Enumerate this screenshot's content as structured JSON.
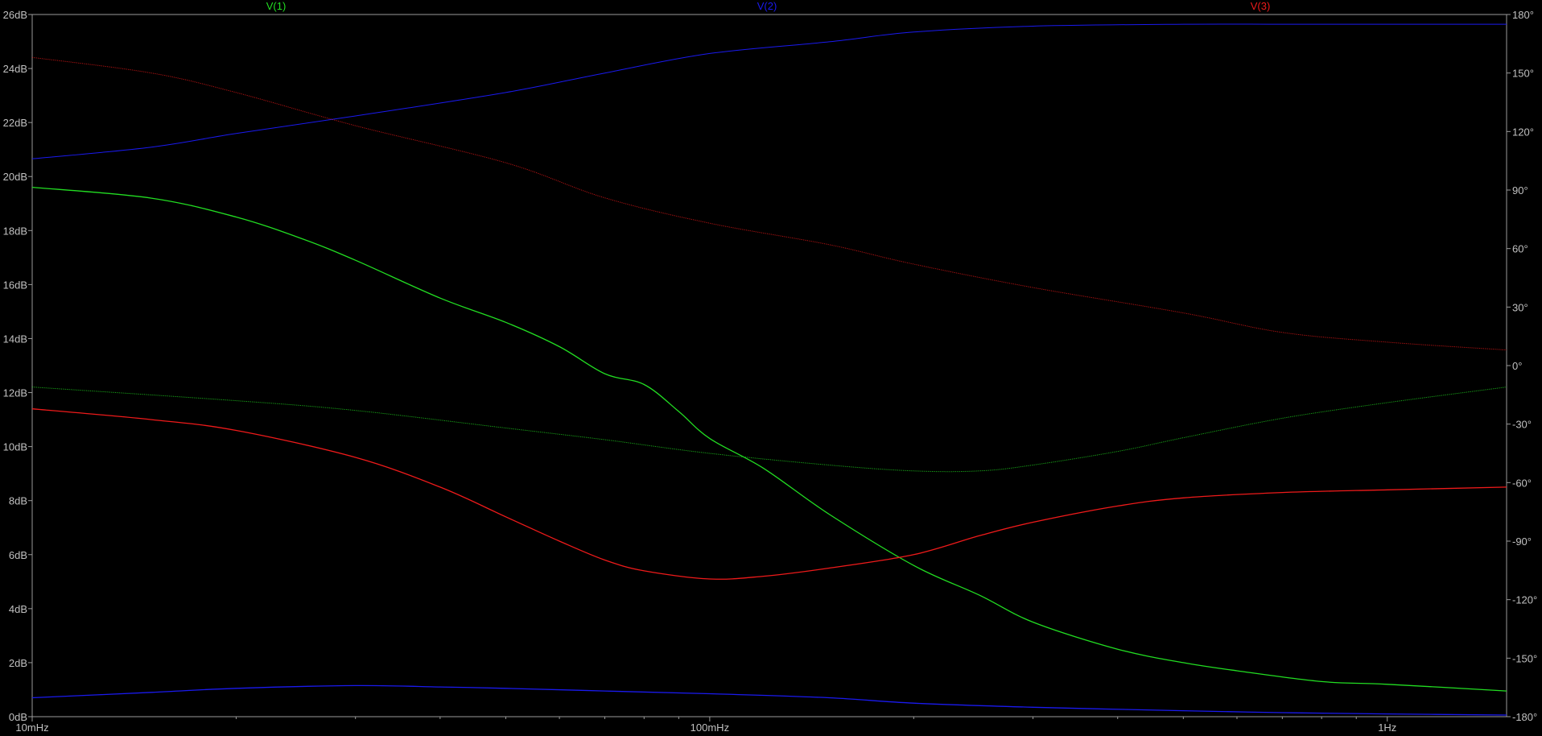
{
  "chart_data": {
    "type": "line",
    "x_scale": "log",
    "x_unit": "Hz",
    "x_range": [
      0.01,
      1.5
    ],
    "y_left_range": [
      0,
      26
    ],
    "y_right_range": [
      -180,
      180
    ],
    "y_left_ticks": [
      {
        "value": 0,
        "label": "0dB"
      },
      {
        "value": 2,
        "label": "2dB"
      },
      {
        "value": 4,
        "label": "4dB"
      },
      {
        "value": 6,
        "label": "6dB"
      },
      {
        "value": 8,
        "label": "8dB"
      },
      {
        "value": 10,
        "label": "10dB"
      },
      {
        "value": 12,
        "label": "12dB"
      },
      {
        "value": 14,
        "label": "14dB"
      },
      {
        "value": 16,
        "label": "16dB"
      },
      {
        "value": 18,
        "label": "18dB"
      },
      {
        "value": 20,
        "label": "20dB"
      },
      {
        "value": 22,
        "label": "22dB"
      },
      {
        "value": 24,
        "label": "24dB"
      },
      {
        "value": 26,
        "label": "26dB"
      }
    ],
    "y_right_ticks": [
      {
        "value": 180,
        "label": "180°"
      },
      {
        "value": 150,
        "label": "150°"
      },
      {
        "value": 120,
        "label": "120°"
      },
      {
        "value": 90,
        "label": "90°"
      },
      {
        "value": 60,
        "label": "60°"
      },
      {
        "value": 30,
        "label": "30°"
      },
      {
        "value": 0,
        "label": "0°"
      },
      {
        "value": -30,
        "label": "-30°"
      },
      {
        "value": -60,
        "label": "-60°"
      },
      {
        "value": -90,
        "label": "-90°"
      },
      {
        "value": -120,
        "label": "-120°"
      },
      {
        "value": -150,
        "label": "-150°"
      },
      {
        "value": -180,
        "label": "-180°"
      }
    ],
    "x_ticks": [
      {
        "value": 0.01,
        "label": "10mHz"
      },
      {
        "value": 0.1,
        "label": "100mHz"
      },
      {
        "value": 1,
        "label": "1Hz"
      }
    ],
    "grid": false,
    "legend_position": "top",
    "series": [
      {
        "name": "V(1)",
        "color": "#22dd22",
        "magnitude_db": [
          [
            0.01,
            19.6
          ],
          [
            0.015,
            19.2
          ],
          [
            0.02,
            18.5
          ],
          [
            0.025,
            17.7
          ],
          [
            0.03,
            16.9
          ],
          [
            0.04,
            15.5
          ],
          [
            0.05,
            14.6
          ],
          [
            0.06,
            13.7
          ],
          [
            0.07,
            12.7
          ],
          [
            0.08,
            12.3
          ],
          [
            0.09,
            11.3
          ],
          [
            0.1,
            10.3
          ],
          [
            0.12,
            9.2
          ],
          [
            0.15,
            7.5
          ],
          [
            0.2,
            5.6
          ],
          [
            0.25,
            4.5
          ],
          [
            0.3,
            3.5
          ],
          [
            0.4,
            2.5
          ],
          [
            0.5,
            2.0
          ],
          [
            0.6,
            1.7
          ],
          [
            0.8,
            1.3
          ],
          [
            1.0,
            1.2
          ],
          [
            1.5,
            0.95
          ]
        ],
        "phase_deg": [
          [
            0.01,
            -11
          ],
          [
            0.02,
            -18
          ],
          [
            0.03,
            -23
          ],
          [
            0.05,
            -32
          ],
          [
            0.07,
            -38
          ],
          [
            0.1,
            -45
          ],
          [
            0.15,
            -51
          ],
          [
            0.2,
            -54
          ],
          [
            0.25,
            -54
          ],
          [
            0.3,
            -51
          ],
          [
            0.4,
            -44
          ],
          [
            0.5,
            -37
          ],
          [
            0.7,
            -27
          ],
          [
            1.0,
            -19
          ],
          [
            1.5,
            -11
          ]
        ],
        "phase_style": "dotted"
      },
      {
        "name": "V(2)",
        "color": "#1a1aee",
        "magnitude_db": [
          [
            0.01,
            0.7
          ],
          [
            0.015,
            0.9
          ],
          [
            0.02,
            1.05
          ],
          [
            0.03,
            1.15
          ],
          [
            0.04,
            1.1
          ],
          [
            0.05,
            1.05
          ],
          [
            0.07,
            0.95
          ],
          [
            0.1,
            0.85
          ],
          [
            0.15,
            0.7
          ],
          [
            0.2,
            0.5
          ],
          [
            0.3,
            0.35
          ],
          [
            0.5,
            0.22
          ],
          [
            0.7,
            0.15
          ],
          [
            1.0,
            0.1
          ],
          [
            1.5,
            0.06
          ]
        ],
        "phase_deg": [
          [
            0.01,
            106
          ],
          [
            0.015,
            112
          ],
          [
            0.02,
            119
          ],
          [
            0.03,
            128
          ],
          [
            0.05,
            140
          ],
          [
            0.07,
            150
          ],
          [
            0.1,
            160
          ],
          [
            0.15,
            166
          ],
          [
            0.2,
            171
          ],
          [
            0.3,
            174
          ],
          [
            0.5,
            175
          ],
          [
            0.7,
            175
          ],
          [
            1.0,
            175
          ],
          [
            1.5,
            175
          ]
        ]
      },
      {
        "name": "V(3)",
        "color": "#ee1a1a",
        "magnitude_db": [
          [
            0.01,
            11.4
          ],
          [
            0.015,
            11.0
          ],
          [
            0.02,
            10.6
          ],
          [
            0.03,
            9.6
          ],
          [
            0.04,
            8.5
          ],
          [
            0.05,
            7.4
          ],
          [
            0.06,
            6.5
          ],
          [
            0.07,
            5.8
          ],
          [
            0.08,
            5.4
          ],
          [
            0.1,
            5.1
          ],
          [
            0.12,
            5.2
          ],
          [
            0.15,
            5.5
          ],
          [
            0.2,
            6.0
          ],
          [
            0.25,
            6.7
          ],
          [
            0.3,
            7.2
          ],
          [
            0.4,
            7.8
          ],
          [
            0.5,
            8.1
          ],
          [
            0.7,
            8.3
          ],
          [
            1.0,
            8.4
          ],
          [
            1.5,
            8.5
          ]
        ],
        "phase_deg": [
          [
            0.01,
            158
          ],
          [
            0.015,
            150
          ],
          [
            0.02,
            140
          ],
          [
            0.03,
            123
          ],
          [
            0.05,
            104
          ],
          [
            0.07,
            86
          ],
          [
            0.1,
            73
          ],
          [
            0.15,
            62
          ],
          [
            0.2,
            52
          ],
          [
            0.3,
            40
          ],
          [
            0.5,
            27
          ],
          [
            0.7,
            17
          ],
          [
            1.0,
            12
          ],
          [
            1.5,
            8
          ]
        ],
        "phase_style": "dotted"
      }
    ]
  }
}
